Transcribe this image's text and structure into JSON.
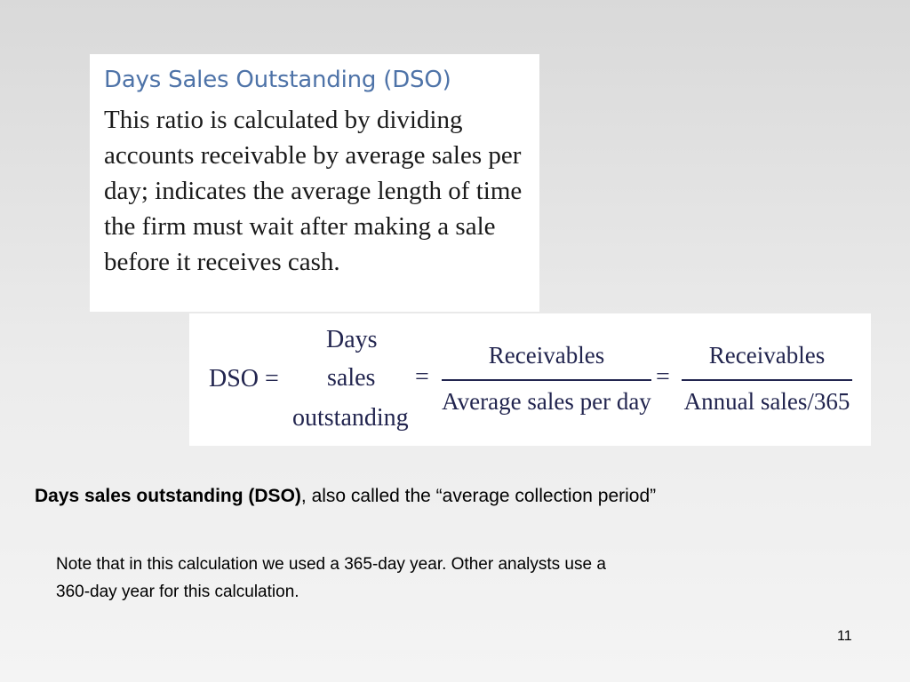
{
  "definition": {
    "title": "Days Sales Outstanding (DSO)",
    "text": "This ratio is calculated by dividing accounts receivable by average sales per day; indicates the average length of time the firm must wait after making a sale before it receives cash."
  },
  "formula": {
    "lhs": "DSO =",
    "term_line1": "Days",
    "term_line2": "sales",
    "term_line3": "outstanding",
    "equals": "=",
    "frac1_numerator": "Receivables",
    "frac1_denominator": "Average sales per day",
    "frac2_numerator": "Receivables",
    "frac2_denominator": "Annual sales/365"
  },
  "caption": {
    "bold": "Days sales outstanding (DSO)",
    "rest": ", also called the “average collection period”"
  },
  "note": {
    "line1": "Note that in this calculation we used a 365-day year. Other analysts use a",
    "line2": "360-day year for this calculation."
  },
  "page_number": "11"
}
